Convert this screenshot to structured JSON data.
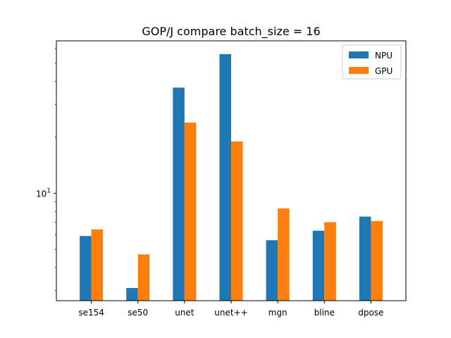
{
  "chart_data": {
    "type": "bar",
    "title": "GOP/J compare  batch_size = 16",
    "xlabel": "",
    "ylabel": "",
    "yscale": "log",
    "ylim": [
      2.65,
      66
    ],
    "ytick_labels": [
      {
        "value": 10,
        "base": "10",
        "exp": "1"
      }
    ],
    "categories": [
      "se154",
      "se50",
      "unet",
      "unet++",
      "mgn",
      "bline",
      "dpose"
    ],
    "series": [
      {
        "name": "NPU",
        "color": "#1f77b4",
        "values": [
          5.9,
          3.1,
          37.0,
          56.0,
          5.6,
          6.3,
          7.5
        ]
      },
      {
        "name": "GPU",
        "color": "#ff7f0e",
        "values": [
          6.4,
          4.7,
          24.0,
          19.0,
          8.3,
          7.0,
          7.1
        ]
      }
    ],
    "legend": {
      "placement": "top-right"
    },
    "grid": false
  }
}
